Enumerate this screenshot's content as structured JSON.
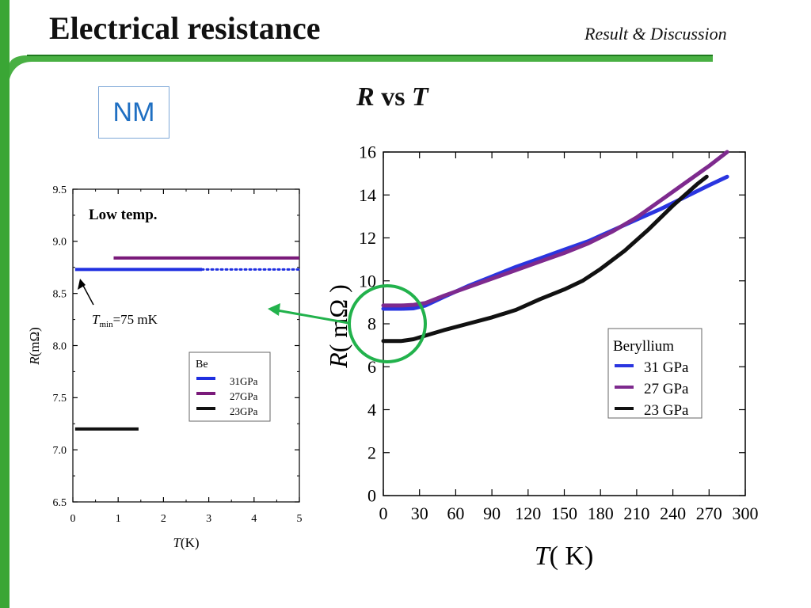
{
  "slide": {
    "title": "Electrical resistance",
    "section": "Result & Discussion",
    "tag": "NM",
    "heading": {
      "r": "R",
      "vs": " vs ",
      "t": "T"
    },
    "colors": {
      "green_bar": "#3aa635",
      "dark_green": "#1e7a1e",
      "circle": "#22b24c",
      "arrow": "#22b24c"
    }
  },
  "chart_data": [
    {
      "type": "scatter",
      "panel": "inset-low-temperature",
      "annotation": "Low temp.",
      "tmin_label": {
        "sym": "T",
        "sub": "min",
        "rest": "=75 mK"
      },
      "xlabel": {
        "sym": "T",
        "unit": "(K)"
      },
      "ylabel": {
        "sym": "R",
        "unit": "(mΩ)"
      },
      "xlim": [
        0,
        5
      ],
      "ylim": [
        6.5,
        9.5
      ],
      "xticks": [
        "0",
        "1",
        "2",
        "3",
        "4",
        "5"
      ],
      "yticks": [
        "6.5",
        "7.0",
        "7.5",
        "8.0",
        "8.5",
        "9.0",
        "9.5"
      ],
      "legend": {
        "title": "Be",
        "position": "center-right"
      },
      "series": [
        {
          "name": "31GPa",
          "color": "#1f2fe0",
          "segments": [
            {
              "x": [
                0.05,
                2.85
              ],
              "y": [
                8.73,
                8.73
              ]
            },
            {
              "x": [
                2.85,
                5.0
              ],
              "y": [
                8.73,
                8.73
              ],
              "dotted": true
            }
          ]
        },
        {
          "name": "27GPa",
          "color": "#7a1a7a",
          "segments": [
            {
              "x": [
                0.9,
                5.0
              ],
              "y": [
                8.84,
                8.84
              ]
            }
          ]
        },
        {
          "name": "23GPa",
          "color": "#111111",
          "segments": [
            {
              "x": [
                0.05,
                1.45
              ],
              "y": [
                7.2,
                7.2
              ]
            }
          ]
        }
      ]
    },
    {
      "type": "line",
      "panel": "main-r-vs-t",
      "xlabel": {
        "sym": "T",
        "unit": "( K)"
      },
      "ylabel": {
        "sym": "R",
        "unit": "( mΩ )"
      },
      "xlim": [
        0,
        300
      ],
      "ylim": [
        0,
        16
      ],
      "xticks": [
        "0",
        "30",
        "60",
        "90",
        "120",
        "150",
        "180",
        "210",
        "240",
        "270",
        "300"
      ],
      "yticks": [
        "0",
        "2",
        "4",
        "6",
        "8",
        "10",
        "12",
        "14",
        "16"
      ],
      "legend": {
        "title": "Beryllium",
        "position": "right"
      },
      "series": [
        {
          "name": "31 GPa",
          "color": "#2a35e0",
          "x": [
            0,
            15,
            25,
            35,
            50,
            70,
            90,
            110,
            130,
            150,
            170,
            190,
            210,
            230,
            250,
            270,
            285
          ],
          "y": [
            8.7,
            8.7,
            8.72,
            8.85,
            9.25,
            9.75,
            10.2,
            10.65,
            11.05,
            11.45,
            11.85,
            12.35,
            12.85,
            13.35,
            13.9,
            14.45,
            14.85
          ]
        },
        {
          "name": "27 GPa",
          "color": "#7e2a8e",
          "x": [
            0,
            15,
            25,
            35,
            50,
            70,
            90,
            110,
            130,
            150,
            170,
            190,
            210,
            230,
            250,
            270,
            285
          ],
          "y": [
            8.85,
            8.85,
            8.88,
            8.97,
            9.3,
            9.7,
            10.1,
            10.5,
            10.9,
            11.3,
            11.75,
            12.3,
            12.95,
            13.75,
            14.55,
            15.35,
            16.0
          ]
        },
        {
          "name": "23 GPa",
          "color": "#111111",
          "x": [
            0,
            15,
            25,
            35,
            50,
            70,
            90,
            110,
            130,
            150,
            165,
            180,
            200,
            220,
            240,
            260,
            268
          ],
          "y": [
            7.2,
            7.2,
            7.28,
            7.45,
            7.7,
            8.0,
            8.3,
            8.65,
            9.15,
            9.6,
            10.0,
            10.55,
            11.4,
            12.4,
            13.5,
            14.5,
            14.85
          ]
        }
      ]
    }
  ]
}
